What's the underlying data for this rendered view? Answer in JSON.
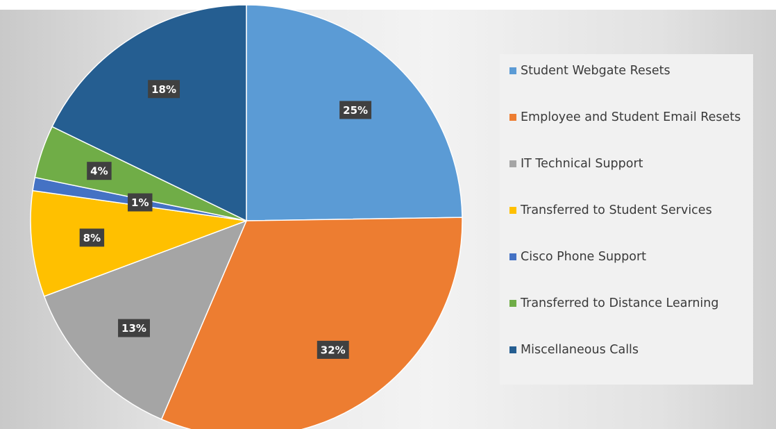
{
  "chart_data": {
    "type": "pie",
    "categories": [
      "Student Webgate Resets",
      "Employee and Student Email Resets",
      "IT Technical Support",
      "Transferred to Student Services",
      "Cisco Phone Support",
      "Transferred to Distance Learning",
      "Miscellaneous Calls"
    ],
    "values": [
      25,
      32,
      13,
      8,
      1,
      4,
      18
    ],
    "value_labels": [
      "25%",
      "32%",
      "13%",
      "8%",
      "1%",
      "4%",
      "18%"
    ],
    "colors": [
      "#5b9bd5",
      "#ed7d31",
      "#a5a5a5",
      "#ffc000",
      "#4472c4",
      "#70ad47",
      "#255e91"
    ]
  }
}
